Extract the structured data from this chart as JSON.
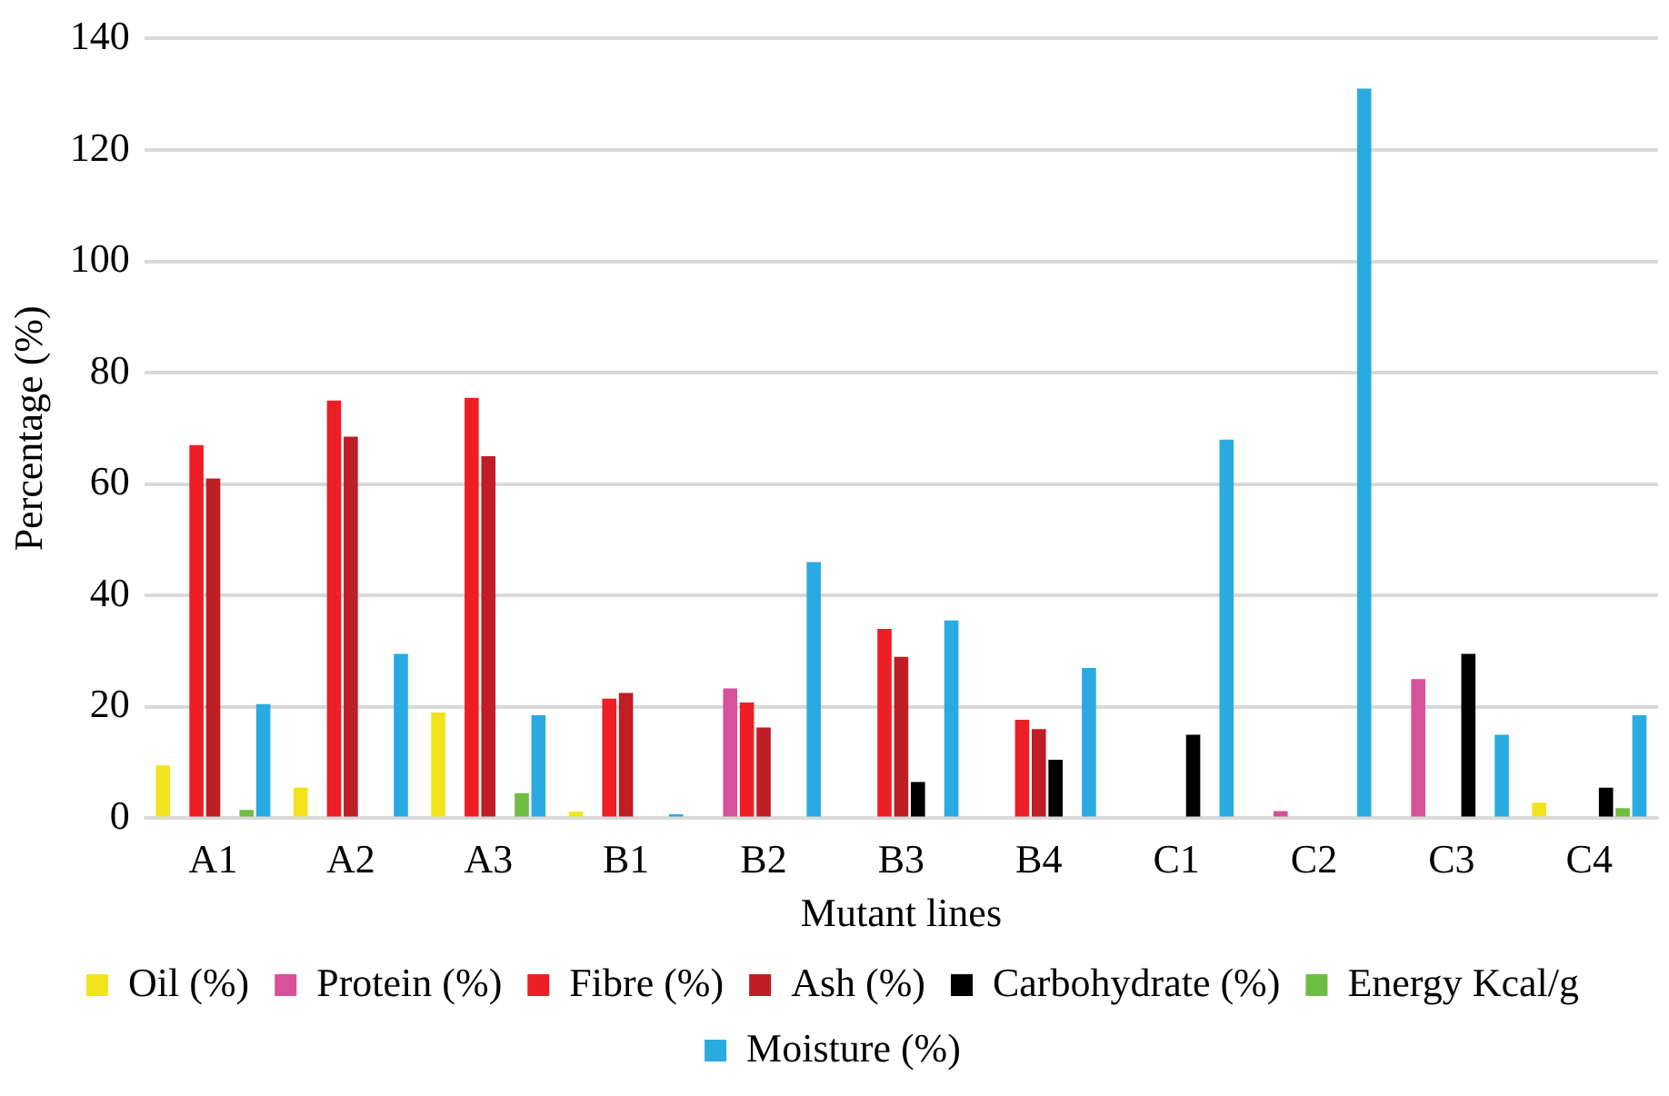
{
  "chart_data": {
    "type": "bar",
    "xlabel": "Mutant lines",
    "ylabel": "Percentage (%)",
    "categories": [
      "A1",
      "A2",
      "A3",
      "B1",
      "B2",
      "B3",
      "B4",
      "C1",
      "C2",
      "C3",
      "C4"
    ],
    "series": [
      {
        "name": "Oil (%)",
        "color": "#f2e41c",
        "values": [
          9.5,
          5.5,
          19,
          1.2,
          null,
          null,
          null,
          null,
          null,
          null,
          2.8
        ]
      },
      {
        "name": "Protein (%)",
        "color": "#d6519a",
        "values": [
          null,
          null,
          null,
          null,
          23.3,
          null,
          null,
          null,
          1.3,
          25,
          null
        ]
      },
      {
        "name": "Fibre (%)",
        "color": "#ed1f24",
        "values": [
          67,
          75,
          75.5,
          21.5,
          20.8,
          34,
          17.7,
          null,
          null,
          null,
          null
        ]
      },
      {
        "name": "Ash (%)",
        "color": "#be1e24",
        "values": [
          61,
          68.5,
          65,
          22.5,
          16.3,
          29,
          16,
          null,
          null,
          null,
          null
        ]
      },
      {
        "name": "Carbohydrate (%)",
        "color": "#000000",
        "values": [
          null,
          null,
          null,
          null,
          null,
          6.5,
          10.5,
          15,
          null,
          29.5,
          5.5
        ]
      },
      {
        "name": "Energy Kcal/g",
        "color": "#6fbe44",
        "values": [
          1.5,
          null,
          4.5,
          null,
          null,
          null,
          null,
          null,
          null,
          null,
          1.8
        ]
      },
      {
        "name": "Moisture (%)",
        "color": "#29abe2",
        "values": [
          20.5,
          29.5,
          18.5,
          0.7,
          46,
          35.5,
          27,
          68,
          131,
          15,
          18.5
        ]
      }
    ],
    "ylim": [
      0,
      140
    ],
    "yticks": [
      0,
      20,
      40,
      60,
      80,
      100,
      120,
      140
    ],
    "grid": "y",
    "legend": "bottom"
  }
}
